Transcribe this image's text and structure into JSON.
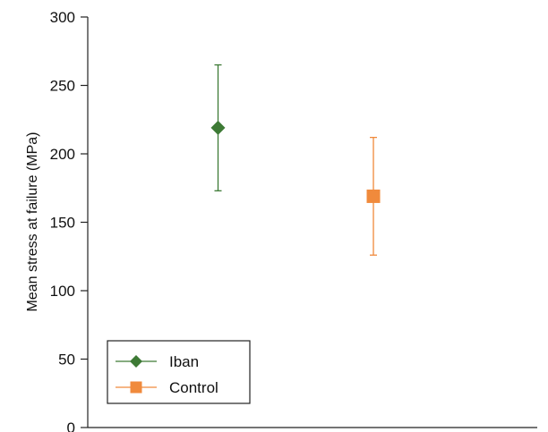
{
  "chart_data": {
    "type": "scatter",
    "title": "",
    "xlabel": "",
    "ylabel": "Mean stress at failure (MPa)",
    "ylim": [
      0,
      300
    ],
    "yticks": [
      0,
      50,
      100,
      150,
      200,
      250,
      300
    ],
    "grid": false,
    "legend_position": "bottom-left",
    "series": [
      {
        "name": "Iban",
        "value": 219,
        "error_high": 265,
        "error_low": 173,
        "color": "#3d7a35",
        "marker": "diamond"
      },
      {
        "name": "Control",
        "value": 169,
        "error_high": 212,
        "error_low": 126,
        "color": "#f08a3c",
        "marker": "square"
      }
    ]
  }
}
